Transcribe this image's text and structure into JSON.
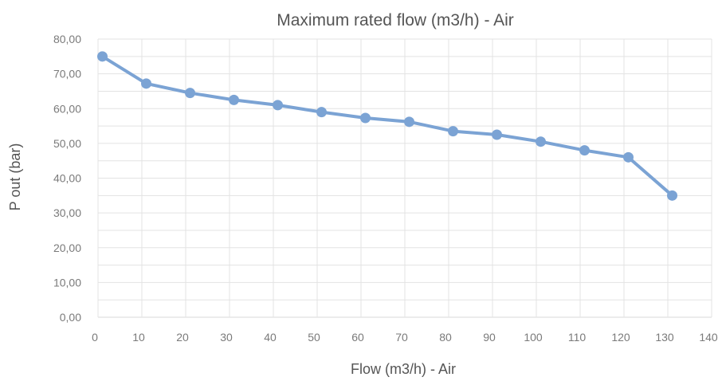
{
  "chart_data": {
    "type": "line",
    "title": "Maximum rated flow (m3/h) - Air",
    "xlabel": "Flow (m3/h) - Air",
    "ylabel": "P out (bar)",
    "xlim": [
      0,
      140
    ],
    "ylim": [
      0,
      80
    ],
    "x_ticks": [
      "0",
      "10",
      "20",
      "30",
      "40",
      "50",
      "60",
      "70",
      "80",
      "90",
      "100",
      "110",
      "120",
      "130",
      "140"
    ],
    "y_ticks": [
      "0,00",
      "10,00",
      "20,00",
      "30,00",
      "40,00",
      "50,00",
      "60,00",
      "70,00",
      "80,00"
    ],
    "grid": true,
    "legend": "none",
    "series": [
      {
        "color": "#7ba3d4",
        "x": [
          1,
          11,
          21,
          31,
          41,
          51,
          61,
          71,
          81,
          91,
          101,
          111,
          121,
          131
        ],
        "y": [
          75.0,
          67.2,
          64.5,
          62.5,
          61.0,
          59.0,
          57.3,
          56.2,
          53.5,
          52.5,
          50.5,
          48.0,
          46.0,
          35.0
        ]
      }
    ]
  }
}
